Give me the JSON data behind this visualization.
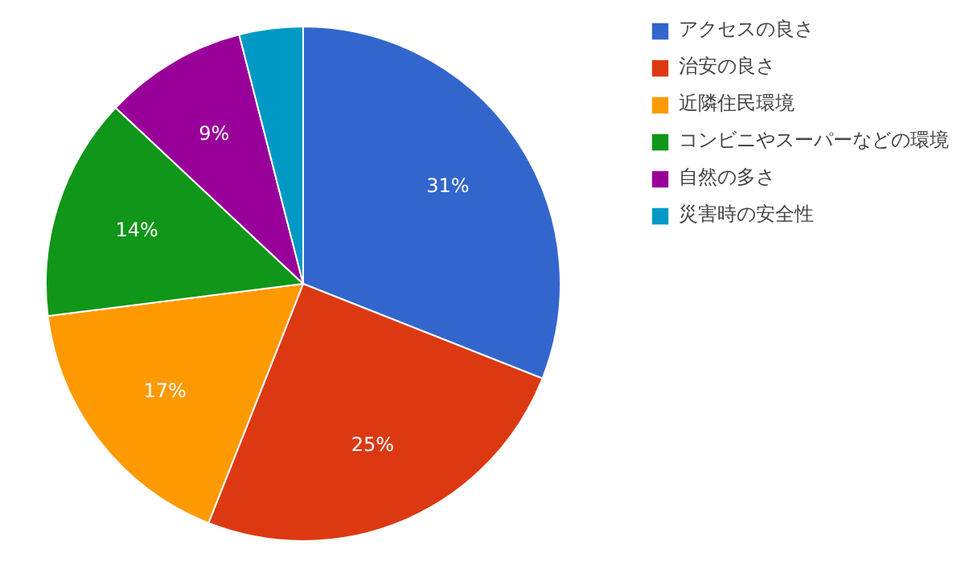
{
  "chart_data": {
    "type": "pie",
    "categories": [
      "アクセスの良さ",
      "治安の良さ",
      "近隣住民環境",
      "コンビニやスーパーなどの環境",
      "自然の多さ",
      "災害時の安全性"
    ],
    "values": [
      31,
      25,
      17,
      14,
      9,
      4
    ],
    "colors": [
      "#3366cc",
      "#dc3912",
      "#ff9900",
      "#109618",
      "#990099",
      "#0099c6"
    ],
    "value_labels": [
      "31%",
      "25%",
      "17%",
      "14%",
      "9%",
      null
    ],
    "legend": "top right"
  }
}
